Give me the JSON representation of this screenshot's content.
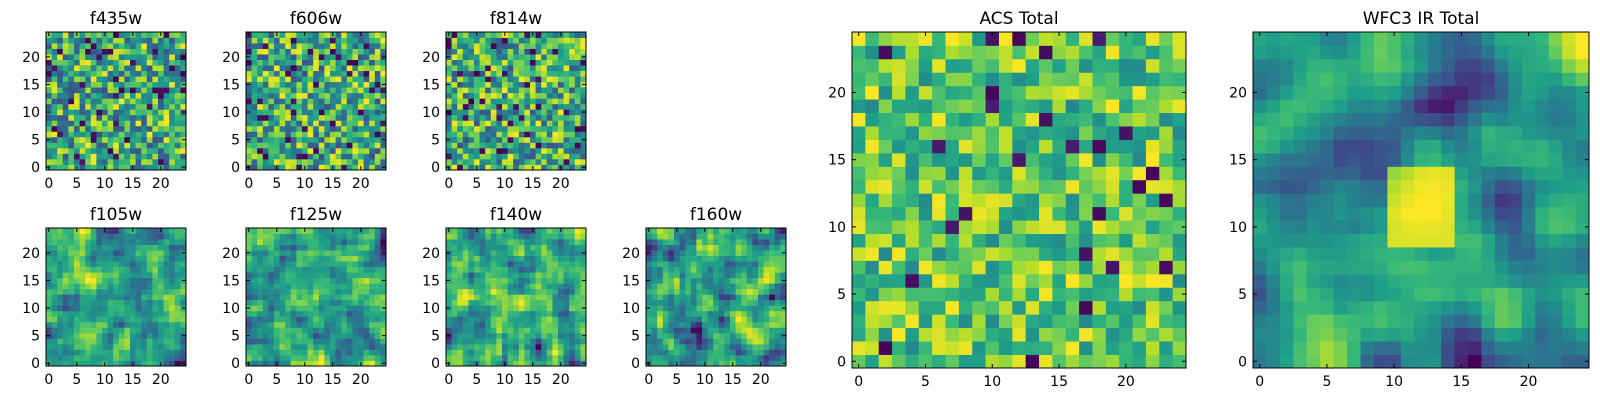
{
  "chart_data": [
    {
      "type": "heatmap",
      "title": "f435w",
      "grid_size": 25,
      "xlim": [
        0,
        24
      ],
      "ylim": [
        0,
        24
      ],
      "xticks": [
        0,
        5,
        10,
        15,
        20
      ],
      "yticks": [
        0,
        5,
        10,
        15,
        20
      ],
      "colormap": "viridis",
      "seed": 11,
      "texture": "noise"
    },
    {
      "type": "heatmap",
      "title": "f606w",
      "grid_size": 25,
      "xlim": [
        0,
        24
      ],
      "ylim": [
        0,
        24
      ],
      "xticks": [
        0,
        5,
        10,
        15,
        20
      ],
      "yticks": [
        0,
        5,
        10,
        15,
        20
      ],
      "colormap": "viridis",
      "seed": 23,
      "texture": "noise"
    },
    {
      "type": "heatmap",
      "title": "f814w",
      "grid_size": 25,
      "xlim": [
        0,
        24
      ],
      "ylim": [
        0,
        24
      ],
      "xticks": [
        0,
        5,
        10,
        15,
        20
      ],
      "yticks": [
        0,
        5,
        10,
        15,
        20
      ],
      "colormap": "viridis",
      "seed": 37,
      "texture": "noise"
    },
    {
      "type": "heatmap",
      "title": "f105w",
      "grid_size": 25,
      "xlim": [
        0,
        24
      ],
      "ylim": [
        0,
        24
      ],
      "xticks": [
        0,
        5,
        10,
        15,
        20
      ],
      "yticks": [
        0,
        5,
        10,
        15,
        20
      ],
      "colormap": "viridis",
      "seed": 41,
      "texture": "smooth"
    },
    {
      "type": "heatmap",
      "title": "f125w",
      "grid_size": 25,
      "xlim": [
        0,
        24
      ],
      "ylim": [
        0,
        24
      ],
      "xticks": [
        0,
        5,
        10,
        15,
        20
      ],
      "yticks": [
        0,
        5,
        10,
        15,
        20
      ],
      "colormap": "viridis",
      "seed": 53,
      "texture": "smooth"
    },
    {
      "type": "heatmap",
      "title": "f140w",
      "grid_size": 25,
      "xlim": [
        0,
        24
      ],
      "ylim": [
        0,
        24
      ],
      "xticks": [
        0,
        5,
        10,
        15,
        20
      ],
      "yticks": [
        0,
        5,
        10,
        15,
        20
      ],
      "colormap": "viridis",
      "seed": 67,
      "texture": "smooth"
    },
    {
      "type": "heatmap",
      "title": "f160w",
      "grid_size": 25,
      "xlim": [
        0,
        24
      ],
      "ylim": [
        0,
        24
      ],
      "xticks": [
        0,
        5,
        10,
        15,
        20
      ],
      "yticks": [
        0,
        5,
        10,
        15,
        20
      ],
      "colormap": "viridis",
      "seed": 79,
      "texture": "smooth"
    },
    {
      "type": "heatmap",
      "title": "ACS Total",
      "grid_size": 25,
      "xlim": [
        0,
        24
      ],
      "ylim": [
        0,
        24
      ],
      "xticks": [
        0,
        5,
        10,
        15,
        20
      ],
      "yticks": [
        0,
        5,
        10,
        15,
        20
      ],
      "colormap": "viridis",
      "seed": 97,
      "texture": "bright-noise"
    },
    {
      "type": "heatmap",
      "title": "WFC3 IR Total",
      "grid_size": 25,
      "xlim": [
        0,
        24
      ],
      "ylim": [
        0,
        24
      ],
      "xticks": [
        0,
        5,
        10,
        15,
        20
      ],
      "yticks": [
        0,
        5,
        10,
        15,
        20
      ],
      "colormap": "viridis",
      "seed": 101,
      "texture": "blob"
    }
  ]
}
